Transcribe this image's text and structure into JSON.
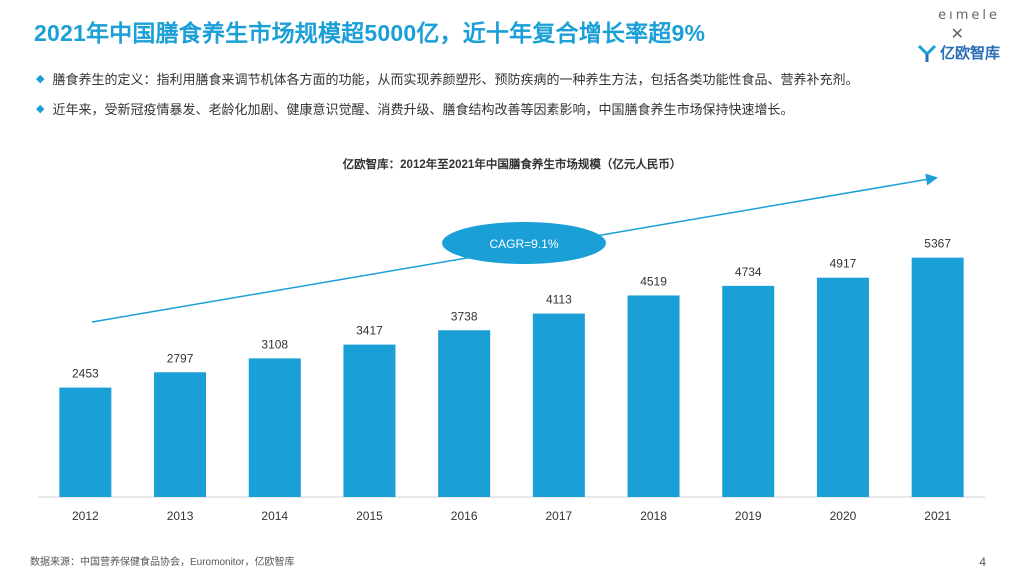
{
  "title": "2021年中国膳食养生市场规模超5000亿，近十年复合增长率超9%",
  "brand": {
    "eimele": "eımele",
    "x": "✕",
    "name": "亿欧智库",
    "logo_icon": "yiou-logo-icon"
  },
  "bullets": [
    "膳食养生的定义：指利用膳食来调节机体各方面的功能，从而实现养颜塑形、预防疾病的一种养生方法，包括各类功能性食品、营养补充剂。",
    "近年来，受新冠疫情暴发、老龄化加剧、健康意识觉醒、消费升级、膳食结构改善等因素影响，中国膳食养生市场保持快速增长。"
  ],
  "chart_data": {
    "type": "bar",
    "title": "亿欧智库：2012年至2021年中国膳食养生市场规模（亿元人民币）",
    "categories": [
      "2012",
      "2013",
      "2014",
      "2015",
      "2016",
      "2017",
      "2018",
      "2019",
      "2020",
      "2021"
    ],
    "values": [
      2453,
      2797,
      3108,
      3417,
      3738,
      4113,
      4519,
      4734,
      4917,
      5367
    ],
    "ylim": [
      0,
      5800
    ],
    "xlabel": "",
    "ylabel": "",
    "grid": false,
    "bar_color": "#1a9fd6",
    "annotation": {
      "label": "CAGR=9.1%",
      "color": "#1a9fd6"
    }
  },
  "source": "数据来源：中国营养保健食品协会，Euromonitor，亿欧智库",
  "page_number": "4"
}
